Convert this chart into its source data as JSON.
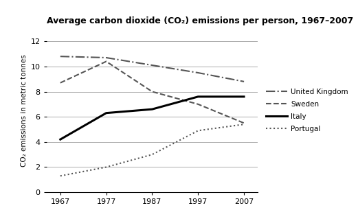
{
  "title": "Average carbon dioxide (CO₂) emissions per person, 1967–2007",
  "ylabel": "CO₂ emissions in metric tonnes",
  "years": [
    1967,
    1977,
    1987,
    1997,
    2007
  ],
  "series": {
    "United Kingdom": {
      "values": [
        10.8,
        10.7,
        10.1,
        9.5,
        8.8
      ],
      "linestyle": "dashdot",
      "linewidth": 1.5,
      "color": "#555555",
      "dashes": null
    },
    "Sweden": {
      "values": [
        8.7,
        10.4,
        8.0,
        7.0,
        5.5
      ],
      "linestyle": "dashed",
      "linewidth": 1.5,
      "color": "#555555",
      "dashes": null
    },
    "Italy": {
      "values": [
        4.2,
        6.3,
        6.6,
        7.6,
        7.6
      ],
      "linestyle": "solid",
      "linewidth": 2.2,
      "color": "#000000",
      "dashes": null
    },
    "Portugal": {
      "values": [
        1.3,
        2.0,
        3.0,
        4.9,
        5.4
      ],
      "linestyle": "dotted",
      "linewidth": 1.5,
      "color": "#555555",
      "dashes": null
    }
  },
  "xlim": [
    1964,
    2010
  ],
  "ylim": [
    0,
    13
  ],
  "yticks": [
    0,
    2,
    4,
    6,
    8,
    10,
    12
  ],
  "xticks": [
    1967,
    1977,
    1987,
    1997,
    2007
  ],
  "grid_color": "#aaaaaa",
  "background_color": "#ffffff"
}
